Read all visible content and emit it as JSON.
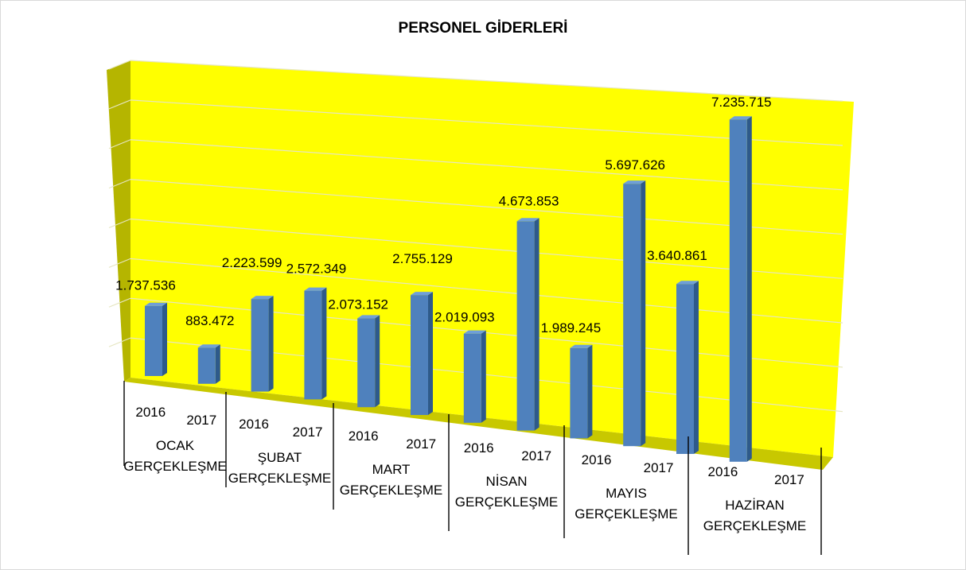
{
  "chart_data": {
    "type": "bar",
    "title": "PERSONEL GİDERLERİ",
    "groups": [
      {
        "label_lines": [
          "OCAK",
          "GERÇEKLEŞME"
        ]
      },
      {
        "label_lines": [
          "ŞUBAT",
          "GERÇEKLEŞME"
        ]
      },
      {
        "label_lines": [
          "MART",
          "GERÇEKLEŞME"
        ]
      },
      {
        "label_lines": [
          "NİSAN",
          "GERÇEKLEŞME"
        ]
      },
      {
        "label_lines": [
          "MAYIS",
          "GERÇEKLEŞME"
        ]
      },
      {
        "label_lines": [
          "HAZİRAN",
          "GERÇEKLEŞME"
        ]
      }
    ],
    "years": [
      "2016",
      "2017"
    ],
    "values": [
      1737536,
      883472,
      2223599,
      2572349,
      2073152,
      2755129,
      2019093,
      4673853,
      1989245,
      5697626,
      3640861,
      7235715
    ],
    "data_labels": [
      "1.737.536",
      "883.472",
      "2.223.599",
      "2.572.349",
      "2.073.152",
      "2.755.129",
      "2.019.093",
      "4.673.853",
      "1.989.245",
      "5.697.626",
      "3.640.861",
      "7.235.715"
    ],
    "ylim": [
      0,
      8000000
    ],
    "grid": true,
    "legend": "none",
    "colors": {
      "bar_front": "#4f81bd",
      "bar_side": "#2e5a8a",
      "bar_top": "#6f9fd8",
      "back_wall": "#ffff00",
      "floor": "#c8c800",
      "side_wall": "#b5b500",
      "grid": "#e6e6c0"
    }
  }
}
